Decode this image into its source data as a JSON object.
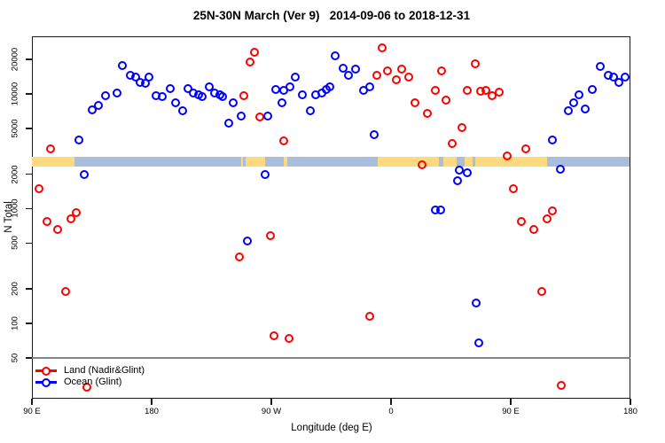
{
  "title": "25N-30N March (Ver 9)   2014-09-06 to 2018-12-31",
  "axes": {
    "x": {
      "label": "Longitude (deg E)",
      "ticks": [
        {
          "lon": 90,
          "label": "90 E"
        },
        {
          "lon": 180,
          "label": "180"
        },
        {
          "lon": 270,
          "label": "90 W"
        },
        {
          "lon": 360,
          "label": "0"
        },
        {
          "lon": 450,
          "label": "90 E"
        },
        {
          "lon": 540,
          "label": "180"
        }
      ]
    },
    "y": {
      "label": "N Total",
      "scale": "log",
      "ticks": [
        50,
        100,
        200,
        500,
        1000,
        2000,
        5000,
        10000,
        20000
      ]
    }
  },
  "legend": [
    {
      "label": "Land (Nadir&Glint)",
      "color": "#ff0000"
    },
    {
      "label": "Ocean (Glint)",
      "color": "#0000ff"
    }
  ],
  "colors": {
    "land_series": "#ff0000",
    "ocean_series": "#0000ff",
    "band_land": "#ffd97d",
    "band_ocean": "#a9bedc",
    "gridline": "#858585",
    "axis": "#1a1a1a"
  },
  "chart_data": {
    "type": "scatter",
    "title": "25N-30N March (Ver 9)   2014-09-06 to 2018-12-31",
    "xlabel": "Longitude (deg E)",
    "ylabel": "N Total",
    "x_units": "degrees East, extended axis wrapping from 90E through 180, 90W, 0, 90E to 180",
    "xlim": [
      90,
      540
    ],
    "ylim": [
      20,
      30000
    ],
    "y_scale": "log",
    "gridline_y": 50,
    "series": [
      {
        "name": "Land (Nadir&Glint)",
        "color": "#ff0000",
        "points": [
          [
            104,
            3300
          ],
          [
            95,
            1500
          ],
          [
            101,
            770
          ],
          [
            109,
            660
          ],
          [
            115,
            190
          ],
          [
            119,
            810
          ],
          [
            123,
            930
          ],
          [
            131,
            28
          ],
          [
            246,
            380
          ],
          [
            249,
            9700
          ],
          [
            254,
            19000
          ],
          [
            257,
            23000
          ],
          [
            261,
            6300
          ],
          [
            269,
            580
          ],
          [
            272,
            78
          ],
          [
            279,
            3900
          ],
          [
            283,
            74
          ],
          [
            344,
            115
          ],
          [
            349,
            14500
          ],
          [
            353,
            25000
          ],
          [
            357,
            16000
          ],
          [
            364,
            13300
          ],
          [
            368,
            16500
          ],
          [
            373,
            14000
          ],
          [
            378,
            8300
          ],
          [
            383,
            2400
          ],
          [
            387,
            6800
          ],
          [
            393,
            10700
          ],
          [
            398,
            16000
          ],
          [
            401,
            8900
          ],
          [
            406,
            3700
          ],
          [
            413,
            5100
          ],
          [
            417,
            10800
          ],
          [
            423,
            18200
          ],
          [
            427,
            10500
          ],
          [
            431,
            10800
          ],
          [
            436,
            9700
          ],
          [
            441,
            10400
          ],
          [
            447,
            2900
          ],
          [
            452,
            1500
          ],
          [
            458,
            770
          ],
          [
            461,
            3300
          ],
          [
            467,
            660
          ],
          [
            473,
            190
          ],
          [
            477,
            810
          ],
          [
            481,
            950
          ],
          [
            488,
            29
          ]
        ]
      },
      {
        "name": "Ocean (Glint)",
        "color": "#0000ff",
        "points": [
          [
            125,
            4000
          ],
          [
            129,
            2000
          ],
          [
            135,
            7300
          ],
          [
            140,
            7900
          ],
          [
            145,
            9700
          ],
          [
            154,
            10200
          ],
          [
            158,
            17700
          ],
          [
            164,
            14600
          ],
          [
            168,
            13900
          ],
          [
            171,
            12700
          ],
          [
            175,
            12300
          ],
          [
            178,
            13900
          ],
          [
            183,
            9700
          ],
          [
            188,
            9400
          ],
          [
            194,
            11200
          ],
          [
            198,
            8300
          ],
          [
            203,
            7100
          ],
          [
            207,
            11200
          ],
          [
            211,
            10200
          ],
          [
            215,
            9900
          ],
          [
            218,
            9400
          ],
          [
            223,
            11600
          ],
          [
            227,
            10200
          ],
          [
            231,
            9900
          ],
          [
            233,
            9400
          ],
          [
            238,
            5600
          ],
          [
            241,
            8300
          ],
          [
            247,
            6400
          ],
          [
            252,
            520
          ],
          [
            265,
            2000
          ],
          [
            267,
            6400
          ],
          [
            273,
            11000
          ],
          [
            278,
            8400
          ],
          [
            279,
            10700
          ],
          [
            284,
            11600
          ],
          [
            288,
            13900
          ],
          [
            293,
            9900
          ],
          [
            299,
            7100
          ],
          [
            303,
            9900
          ],
          [
            308,
            10200
          ],
          [
            311,
            11000
          ],
          [
            314,
            11600
          ],
          [
            318,
            21500
          ],
          [
            324,
            16700
          ],
          [
            328,
            14600
          ],
          [
            333,
            16400
          ],
          [
            339,
            10700
          ],
          [
            344,
            11600
          ],
          [
            347,
            4400
          ],
          [
            393,
            980
          ],
          [
            397,
            980
          ],
          [
            410,
            1750
          ],
          [
            411,
            2150
          ],
          [
            417,
            2050
          ],
          [
            424,
            150
          ],
          [
            426,
            68
          ],
          [
            481,
            4000
          ],
          [
            487,
            2200
          ],
          [
            493,
            7100
          ],
          [
            497,
            8300
          ],
          [
            501,
            9900
          ],
          [
            506,
            7400
          ],
          [
            511,
            11000
          ],
          [
            517,
            17500
          ],
          [
            523,
            14600
          ],
          [
            527,
            13900
          ],
          [
            531,
            12700
          ],
          [
            536,
            14100
          ]
        ]
      }
    ],
    "surface_band": {
      "description": "land/ocean surface-type strip drawn across the plot",
      "value_range": [
        2330,
        2830
      ],
      "segments": [
        {
          "from": 90,
          "to": 122,
          "surface": "land"
        },
        {
          "from": 122,
          "to": 247,
          "surface": "ocean"
        },
        {
          "from": 247,
          "to": 248.5,
          "surface": "land"
        },
        {
          "from": 248.5,
          "to": 250.5,
          "surface": "ocean"
        },
        {
          "from": 250.5,
          "to": 265,
          "surface": "land"
        },
        {
          "from": 265,
          "to": 279,
          "surface": "ocean"
        },
        {
          "from": 279,
          "to": 282,
          "surface": "land"
        },
        {
          "from": 282,
          "to": 350,
          "surface": "ocean"
        },
        {
          "from": 350,
          "to": 396,
          "surface": "land"
        },
        {
          "from": 396,
          "to": 399,
          "surface": "ocean"
        },
        {
          "from": 399,
          "to": 409,
          "surface": "land"
        },
        {
          "from": 409,
          "to": 415.5,
          "surface": "ocean"
        },
        {
          "from": 415.5,
          "to": 421,
          "surface": "land"
        },
        {
          "from": 421,
          "to": 423.5,
          "surface": "ocean"
        },
        {
          "from": 423.5,
          "to": 477,
          "surface": "land"
        },
        {
          "from": 477,
          "to": 539.5,
          "surface": "ocean"
        }
      ]
    }
  }
}
